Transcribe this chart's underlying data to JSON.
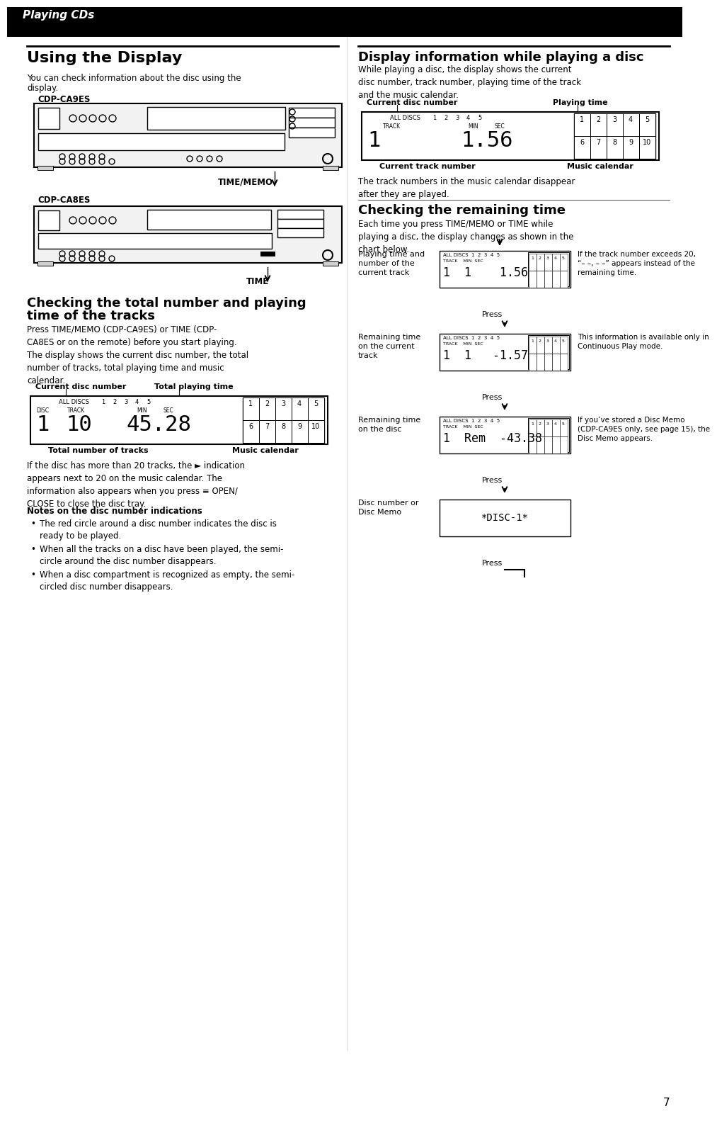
{
  "bg_color": "#ffffff",
  "header_bg": "#000000",
  "header_text": "Playing CDs",
  "page_number": "7",
  "section1_title": "Using the Display",
  "section1_body1": "You can check information about the disc using the",
  "section1_body2": "display.",
  "cdp_ca9es_label": "CDP-CA9ES",
  "cdp_ca8es_label": "CDP-CA8ES",
  "time_memo_label": "TIME/MEMO",
  "time_label": "TIME",
  "section2_title": "Checking the total number and playing",
  "section2_title2": "time of the tracks",
  "section2_body": "Press TIME/MEMO (CDP-CA9ES) or TIME (CDP-\nCA8ES or on the remote) before you start playing.\nThe display shows the current disc number, the total\nnumber of tracks, total playing time and music\ncalendar.",
  "display1_label_left": "Current disc number",
  "display1_label_mid": "Total playing time",
  "display1_bottom_left": "Total number of tracks",
  "display1_bottom_right": "Music calendar",
  "section2_body2": "If the disc has more than 20 tracks, the ► indication\nappears next to 20 on the music calendar. The\ninformation also appears when you press ≡ OPEN/\nCLOSE to close the disc tray.",
  "notes_title": "Notes on the disc number indications",
  "notes_bullets": [
    "The red circle around a disc number indicates the disc is\nready to be played.",
    "When all the tracks on a disc have been played, the semi-\ncircle around the disc number disappears.",
    "When a disc compartment is recognized as empty, the semi-\ncircled disc number disappears."
  ],
  "section3_title": "Display information while playing a disc",
  "section3_body": "While playing a disc, the display shows the current\ndisc number, track number, playing time of the track\nand the music calendar.",
  "display2_label_left": "Current disc number",
  "display2_label_right": "Playing time",
  "display2_bottom_left": "Current track number",
  "display2_bottom_right": "Music calendar",
  "section3_body2": "The track numbers in the music calendar disappear\nafter they are played.",
  "section4_title": "Checking the remaining time",
  "section4_body": "Each time you press TIME/MEMO or TIME while\nplaying a disc, the display changes as shown in the\nchart below.",
  "chart_labels": [
    "Playing time and\nnumber of the\ncurrent track",
    "Remaining time\non the current\ntrack",
    "Remaining time\non the disc",
    "Disc number or\nDisc Memo"
  ],
  "chart_displays": [
    "1  1    1.56",
    "1  1   -1.57",
    "1  Rem  -43.38",
    "*DISC-1*"
  ],
  "chart_notes": [
    "If the track number exceeds 20,\n“– –, – –” appears instead of the\nremaining time.",
    "This information is available only in\nContinuous Play mode.",
    "If you’ve stored a Disc Memo\n(CDP-CA9ES only, see page 15), the\nDisc Memo appears."
  ],
  "press_label": "Press"
}
